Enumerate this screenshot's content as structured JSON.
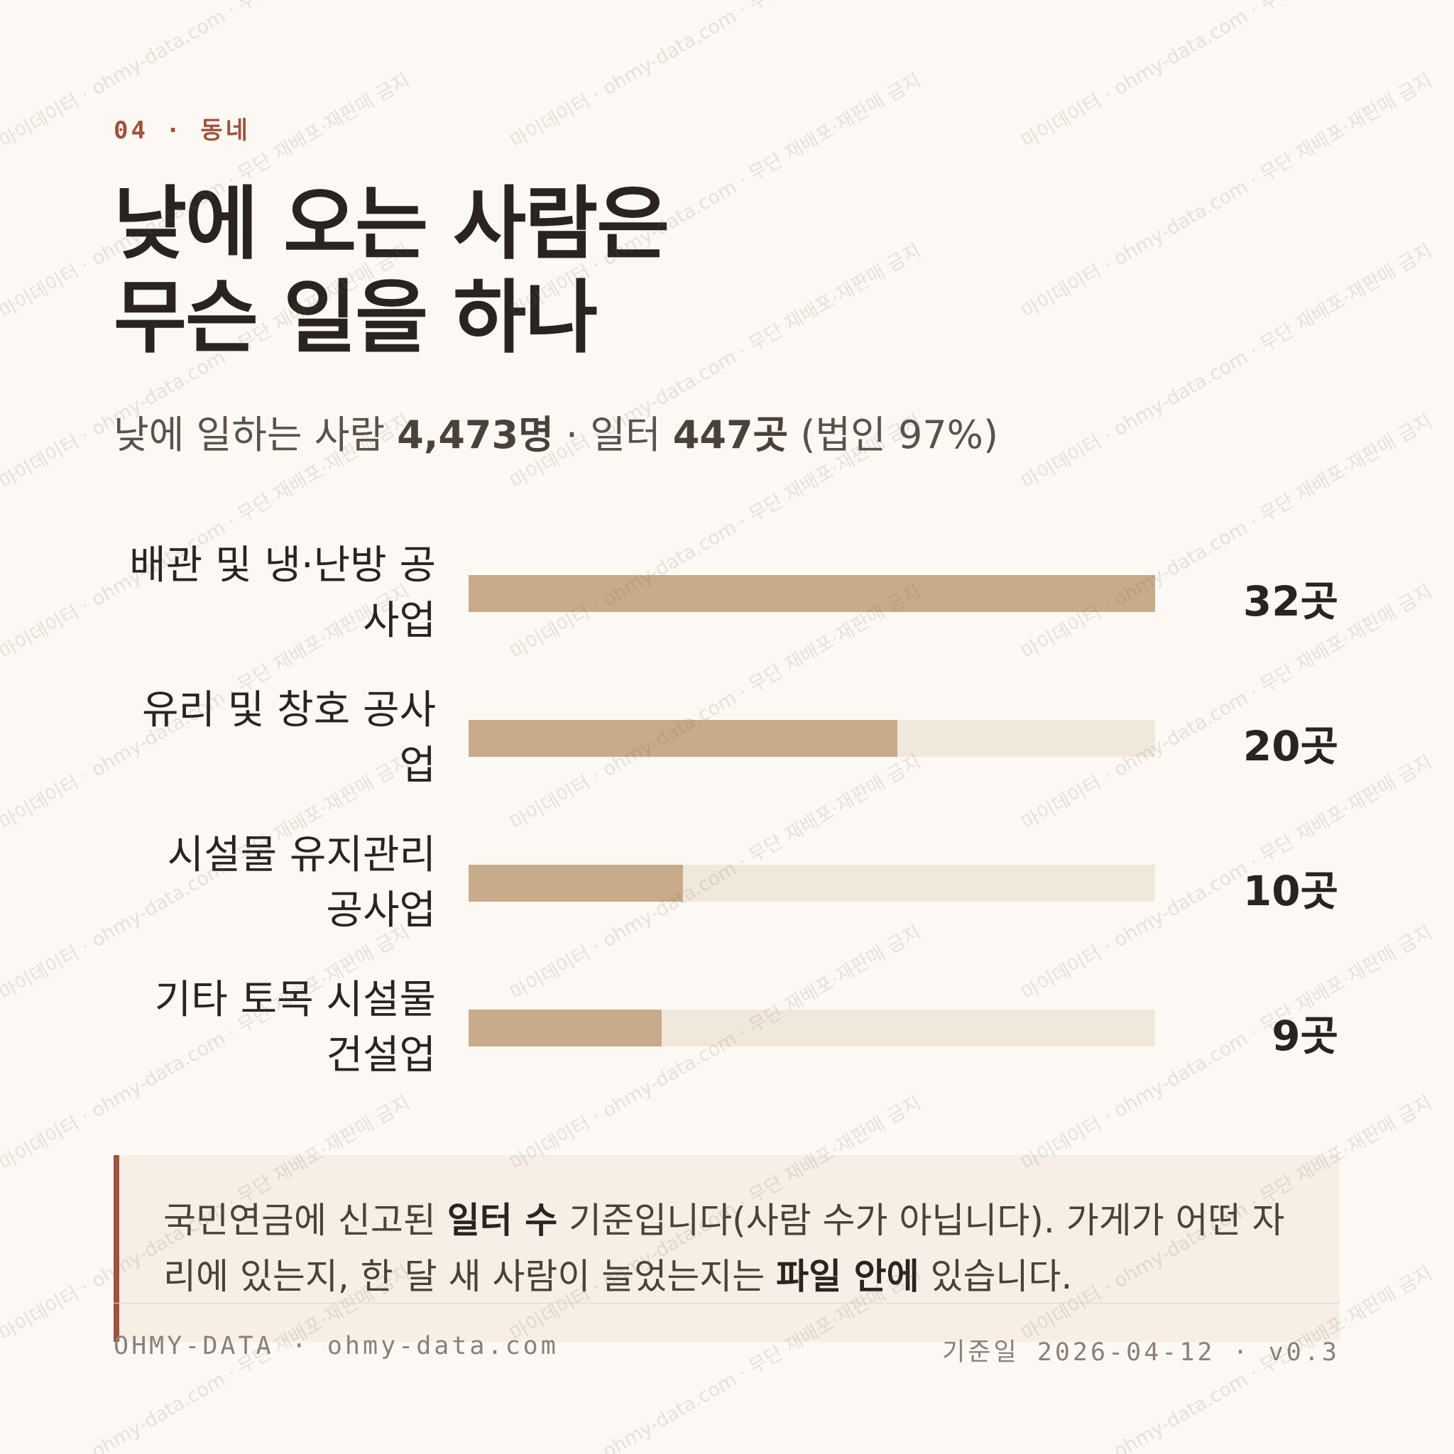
{
  "header": {
    "kicker": "04 · 동네",
    "title_lines": [
      "낮에 오는 사람은",
      "무슨 일을 하나"
    ],
    "subtitle": [
      {
        "text": "낮에 일하는 사람 ",
        "bold": false
      },
      {
        "text": "4,473명",
        "bold": true
      },
      {
        "text": " · 일터 ",
        "bold": false
      },
      {
        "text": "447곳",
        "bold": true
      },
      {
        "text": " (법인 97%)",
        "bold": false
      }
    ]
  },
  "chart_data": {
    "type": "hbar",
    "categories": [
      "배관 및 냉·난방 공사업",
      "유리 및 창호 공사업",
      "시설물 유지관리 공사업",
      "기타 토목 시설물 건설업"
    ],
    "values": [
      32,
      20,
      10,
      9
    ],
    "value_labels": [
      "32곳",
      "20곳",
      "10곳",
      "9곳"
    ],
    "xlim": [
      0,
      32
    ],
    "color": "#c8ab8b",
    "track_color": "#f1e8dc"
  },
  "note": [
    {
      "text": "국민연금에 신고된 ",
      "bold": false
    },
    {
      "text": "일터 수",
      "bold": true
    },
    {
      "text": " 기준입니다(사람 수가 아닙니다). 가게가 어떤 자리에 있는지, 한 달 새 사람이 늘었는지는 ",
      "bold": false
    },
    {
      "text": "파일 안에",
      "bold": true
    },
    {
      "text": " 있습니다.",
      "bold": false
    }
  ],
  "footer": {
    "left": "OHMY-DATA · ohmy-data.com",
    "right": "기준일 2026-04-12 · v0.3"
  },
  "watermark": "마이데이터 · ohmy-data.com · 무단 재배포·재판매 금지"
}
